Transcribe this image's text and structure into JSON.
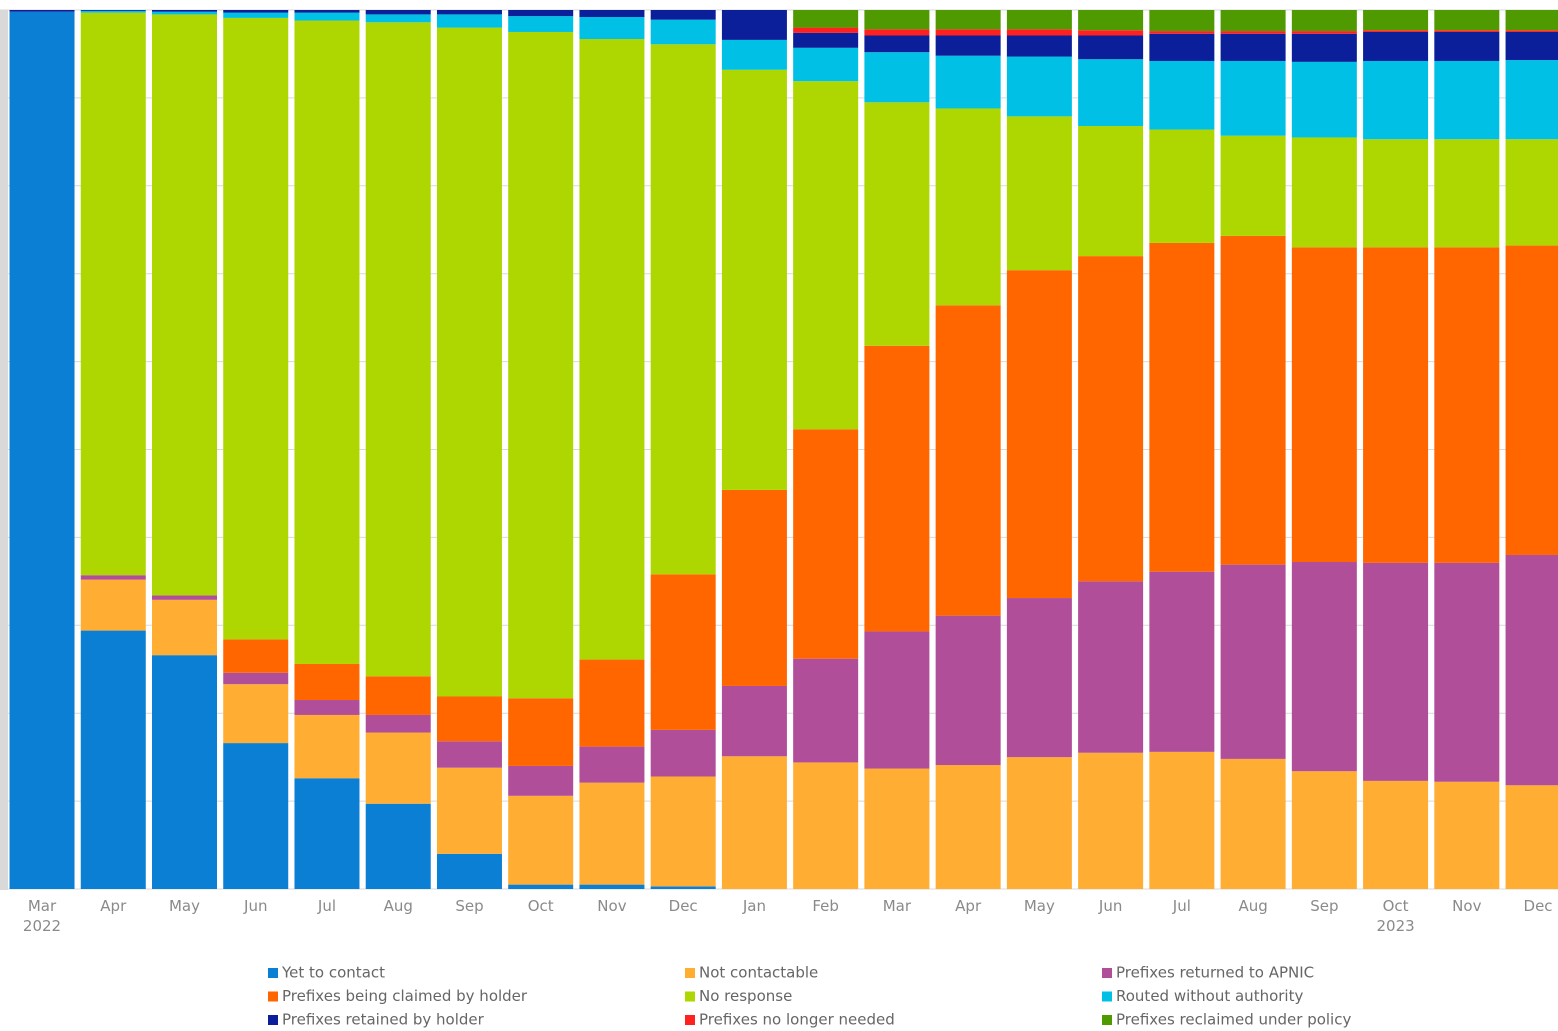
{
  "chart_data": {
    "type": "stacked_bar",
    "categories": [
      "Mar 2022",
      "Apr",
      "May",
      "Jun",
      "Jul",
      "Aug",
      "Sep",
      "Oct",
      "Nov",
      "Dec",
      "Jan",
      "Feb",
      "Mar",
      "Apr",
      "May",
      "Jun",
      "Jul",
      "Aug",
      "Sep",
      "Oct 2023",
      "Nov",
      "Dec"
    ],
    "ylim": [
      0,
      100
    ],
    "yticks": [
      0,
      10,
      20,
      30,
      40,
      50,
      60,
      70,
      80,
      90,
      100
    ],
    "grid": true,
    "series": [
      {
        "name": "Yet to contact",
        "color": "#0a7fd4",
        "values": [
          99.8,
          29.4,
          26.6,
          16.6,
          12.6,
          9.7,
          4.0,
          0.5,
          0.5,
          0.3,
          0,
          0,
          0,
          0,
          0,
          0,
          0,
          0,
          0,
          0,
          0,
          0
        ]
      },
      {
        "name": "Not contactable",
        "color": "#ffad33",
        "values": [
          0,
          5.8,
          6.3,
          6.7,
          7.2,
          8.1,
          9.8,
          10.1,
          11.6,
          12.5,
          15.1,
          14.4,
          13.7,
          14.1,
          15.0,
          15.5,
          15.6,
          14.8,
          13.4,
          12.3,
          12.2,
          11.8
        ]
      },
      {
        "name": "Prefixes returned to APNIC",
        "color": "#b04e9a",
        "values": [
          0,
          0.5,
          0.5,
          1.3,
          1.7,
          2.0,
          3.0,
          3.4,
          4.1,
          5.3,
          8.0,
          11.8,
          15.6,
          17.0,
          18.1,
          19.5,
          20.5,
          22.1,
          23.8,
          24.8,
          24.9,
          26.2
        ]
      },
      {
        "name": "Prefixes being claimed by holder",
        "color": "#ff6600",
        "values": [
          0,
          0,
          0,
          3.8,
          4.1,
          4.4,
          5.1,
          7.7,
          9.9,
          17.7,
          22.3,
          26.1,
          32.5,
          35.3,
          37.3,
          37.0,
          37.4,
          37.4,
          35.8,
          35.9,
          35.9,
          35.2
        ]
      },
      {
        "name": "No response",
        "color": "#aed600",
        "values": [
          0,
          64.0,
          66.1,
          70.7,
          73.2,
          74.4,
          76.1,
          75.8,
          70.6,
          60.3,
          47.8,
          39.6,
          27.7,
          22.4,
          17.5,
          14.8,
          12.9,
          11.4,
          12.5,
          12.3,
          12.3,
          12.1
        ]
      },
      {
        "name": "Routed without authority",
        "color": "#00c0e6",
        "values": [
          0,
          0.2,
          0.3,
          0.6,
          0.9,
          0.9,
          1.5,
          1.8,
          2.5,
          2.8,
          3.4,
          3.8,
          5.7,
          6.0,
          6.8,
          7.6,
          7.8,
          8.5,
          8.6,
          8.9,
          8.9,
          9.0
        ]
      },
      {
        "name": "Prefixes retained by holder",
        "color": "#0a1f99",
        "values": [
          0.2,
          0.1,
          0.2,
          0.3,
          0.3,
          0.5,
          0.5,
          0.7,
          0.8,
          1.1,
          3.4,
          1.7,
          1.9,
          2.3,
          2.4,
          2.7,
          3.1,
          3.1,
          3.2,
          3.3,
          3.3,
          3.2
        ]
      },
      {
        "name": "Prefixes no longer needed",
        "color": "#ff2020",
        "values": [
          0,
          0,
          0,
          0,
          0,
          0,
          0,
          0,
          0,
          0,
          0,
          0.6,
          0.7,
          0.7,
          0.7,
          0.6,
          0.3,
          0.3,
          0.3,
          0.2,
          0.2,
          0.2
        ]
      },
      {
        "name": "Prefixes reclaimed under policy",
        "color": "#4e9a00",
        "values": [
          0,
          0,
          0,
          0,
          0,
          0,
          0,
          0,
          0,
          0,
          0,
          2.0,
          2.2,
          2.2,
          2.2,
          2.3,
          2.4,
          2.4,
          2.4,
          2.3,
          2.3,
          2.3
        ]
      }
    ]
  }
}
